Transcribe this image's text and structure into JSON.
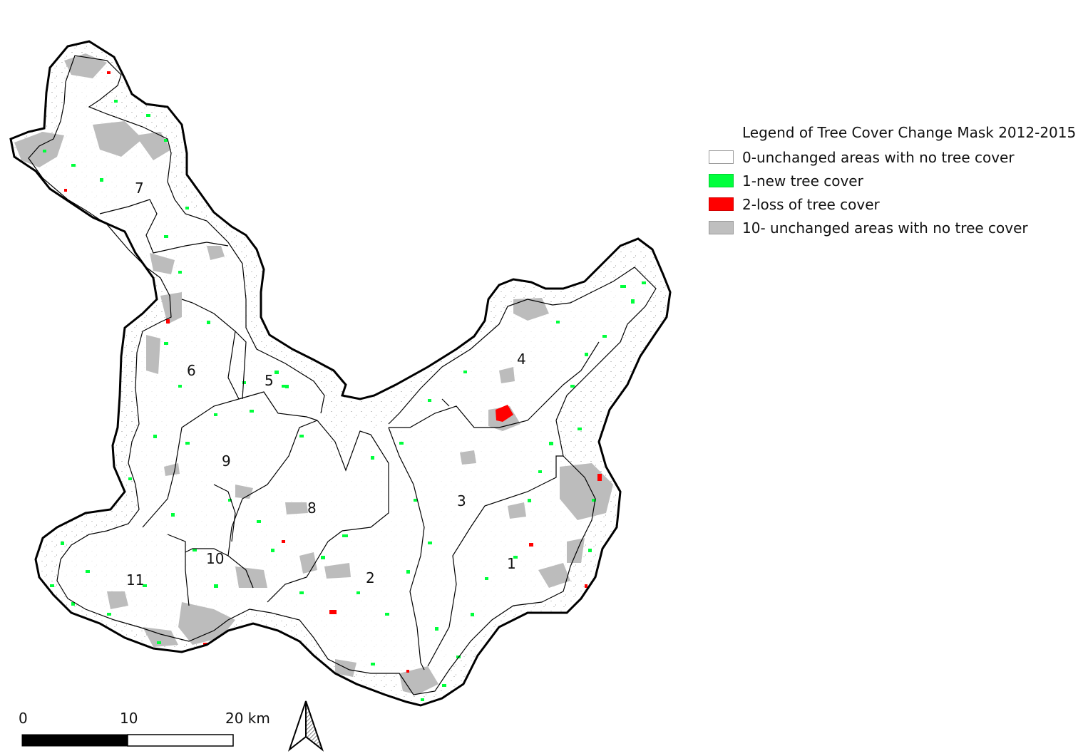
{
  "legend": {
    "title": "Legend of Tree Cover Change Mask 2012-2015",
    "items": [
      {
        "label": "0-unchanged areas with no tree cover",
        "color": "#ffffff"
      },
      {
        "label": "1-new tree cover",
        "color": "#00ff3c"
      },
      {
        "label": "2-loss of tree cover",
        "color": "#ff0000"
      },
      {
        "label": "10- unchanged areas with no tree cover",
        "color": "#bfbfbf"
      }
    ]
  },
  "subbasins": [
    "1",
    "2",
    "3",
    "4",
    "5",
    "6",
    "7",
    "8",
    "9",
    "10",
    "11"
  ],
  "scale_bar": {
    "labels": [
      "0",
      "10",
      "20 km"
    ]
  },
  "north_arrow_icon": "north-arrow-icon"
}
